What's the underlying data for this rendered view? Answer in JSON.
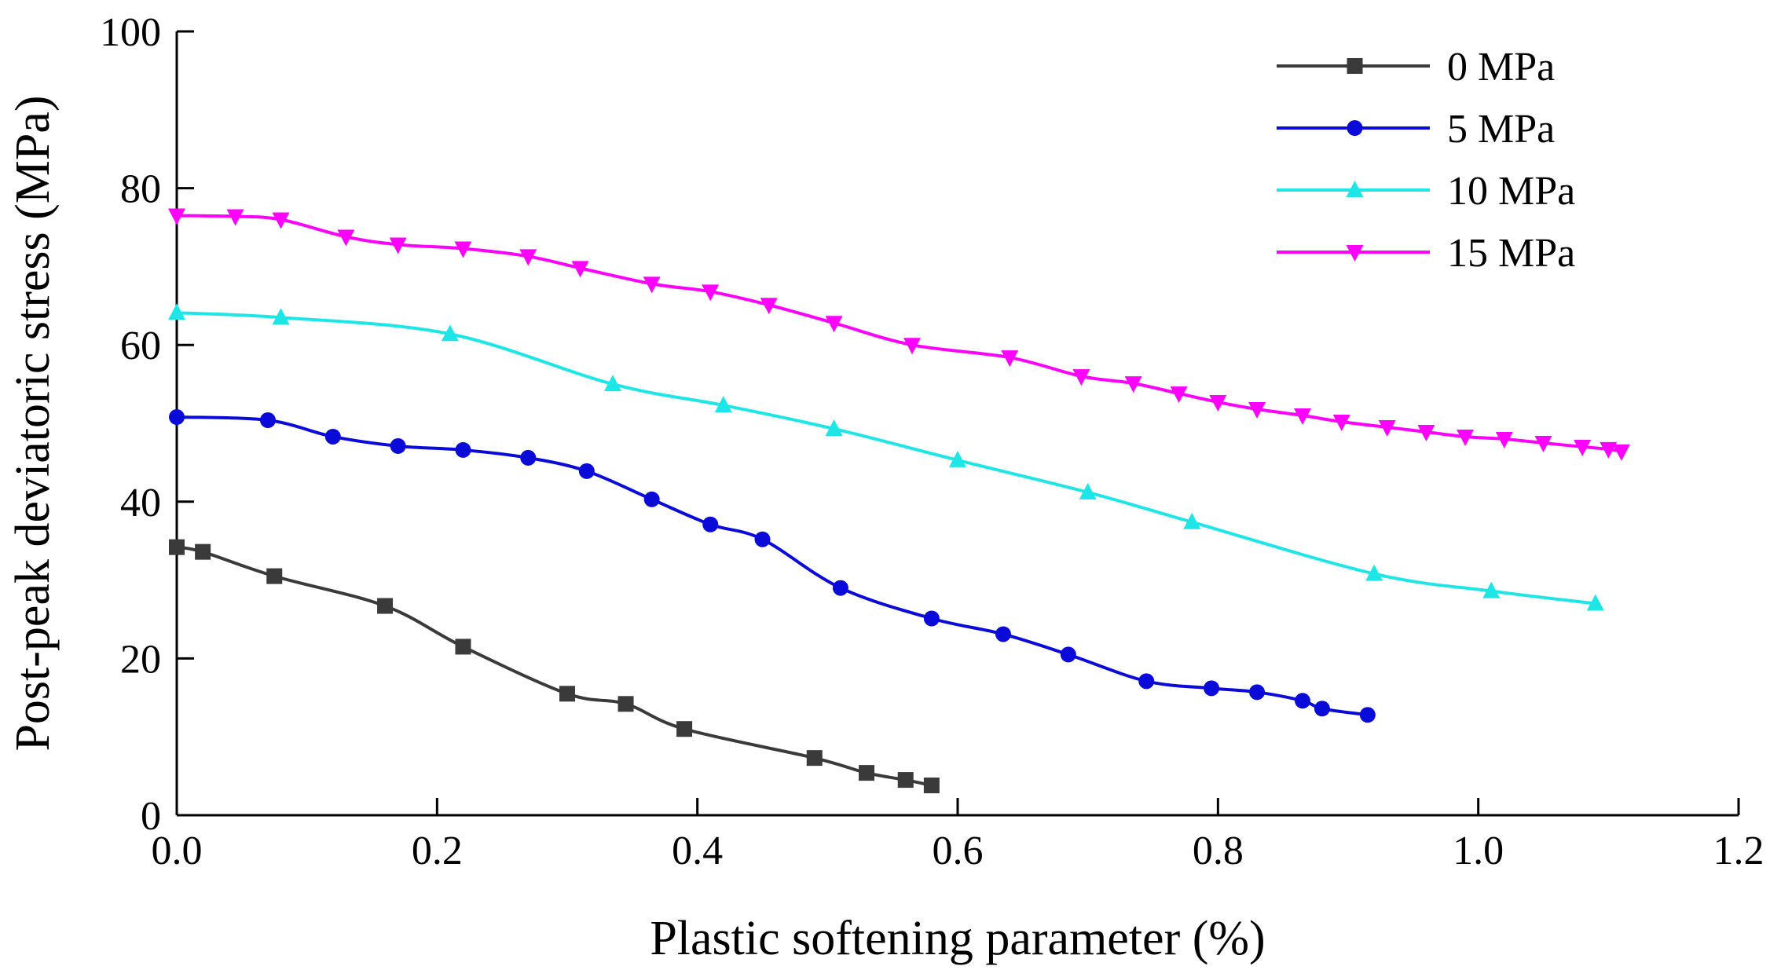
{
  "chart_data": {
    "type": "line",
    "title": "",
    "xlabel": "Plastic softening parameter (%)",
    "ylabel": "Post-peak deviatoric stress (MPa)",
    "xlim": [
      0.0,
      1.2
    ],
    "ylim": [
      0,
      100
    ],
    "xticks": [
      0.0,
      0.2,
      0.4,
      0.6,
      0.8,
      1.0,
      1.2
    ],
    "xtick_labels": [
      "0.0",
      "0.2",
      "0.4",
      "0.6",
      "0.8",
      "1.0",
      "1.2"
    ],
    "yticks": [
      0,
      20,
      40,
      60,
      80,
      100
    ],
    "ytick_labels": [
      "0",
      "20",
      "40",
      "60",
      "80",
      "100"
    ],
    "grid": false,
    "legend_position": "top-right",
    "series": [
      {
        "name": "0 MPa",
        "color": "#3a3a3a",
        "marker": "square",
        "points": [
          [
            0.0,
            34.2
          ],
          [
            0.02,
            33.6
          ],
          [
            0.075,
            30.5
          ],
          [
            0.16,
            26.7
          ],
          [
            0.22,
            21.5
          ],
          [
            0.3,
            15.5
          ],
          [
            0.345,
            14.2
          ],
          [
            0.39,
            11.0
          ],
          [
            0.49,
            7.3
          ],
          [
            0.53,
            5.4
          ],
          [
            0.56,
            4.5
          ],
          [
            0.58,
            3.8
          ]
        ]
      },
      {
        "name": "5 MPa",
        "color": "#0b0bd9",
        "marker": "circle",
        "points": [
          [
            0.0,
            50.8
          ],
          [
            0.07,
            50.4
          ],
          [
            0.12,
            48.3
          ],
          [
            0.17,
            47.1
          ],
          [
            0.22,
            46.6
          ],
          [
            0.27,
            45.6
          ],
          [
            0.315,
            43.9
          ],
          [
            0.365,
            40.3
          ],
          [
            0.41,
            37.1
          ],
          [
            0.45,
            35.2
          ],
          [
            0.51,
            29.0
          ],
          [
            0.58,
            25.1
          ],
          [
            0.635,
            23.1
          ],
          [
            0.685,
            20.5
          ],
          [
            0.745,
            17.1
          ],
          [
            0.795,
            16.2
          ],
          [
            0.83,
            15.7
          ],
          [
            0.865,
            14.6
          ],
          [
            0.88,
            13.6
          ],
          [
            0.915,
            12.8
          ]
        ]
      },
      {
        "name": "10 MPa",
        "color": "#1fe6e6",
        "marker": "triangle-up",
        "points": [
          [
            0.0,
            64.1
          ],
          [
            0.08,
            63.5
          ],
          [
            0.21,
            61.4
          ],
          [
            0.335,
            55.0
          ],
          [
            0.42,
            52.3
          ],
          [
            0.505,
            49.3
          ],
          [
            0.6,
            45.3
          ],
          [
            0.7,
            41.2
          ],
          [
            0.78,
            37.4
          ],
          [
            0.92,
            30.8
          ],
          [
            1.01,
            28.6
          ],
          [
            1.09,
            27.0
          ]
        ]
      },
      {
        "name": "15 MPa",
        "color": "#ff00ff",
        "marker": "triangle-down",
        "points": [
          [
            0.0,
            76.5
          ],
          [
            0.045,
            76.4
          ],
          [
            0.08,
            76.0
          ],
          [
            0.13,
            73.8
          ],
          [
            0.17,
            72.8
          ],
          [
            0.22,
            72.3
          ],
          [
            0.27,
            71.3
          ],
          [
            0.31,
            69.8
          ],
          [
            0.365,
            67.8
          ],
          [
            0.41,
            66.8
          ],
          [
            0.455,
            65.1
          ],
          [
            0.505,
            62.8
          ],
          [
            0.565,
            60.0
          ],
          [
            0.64,
            58.4
          ],
          [
            0.695,
            56.0
          ],
          [
            0.735,
            55.1
          ],
          [
            0.77,
            53.8
          ],
          [
            0.8,
            52.7
          ],
          [
            0.83,
            51.8
          ],
          [
            0.865,
            51.0
          ],
          [
            0.895,
            50.2
          ],
          [
            0.93,
            49.5
          ],
          [
            0.96,
            48.9
          ],
          [
            0.99,
            48.3
          ],
          [
            1.02,
            48.0
          ],
          [
            1.05,
            47.5
          ],
          [
            1.08,
            47.0
          ],
          [
            1.1,
            46.7
          ],
          [
            1.11,
            46.4
          ]
        ]
      }
    ]
  }
}
